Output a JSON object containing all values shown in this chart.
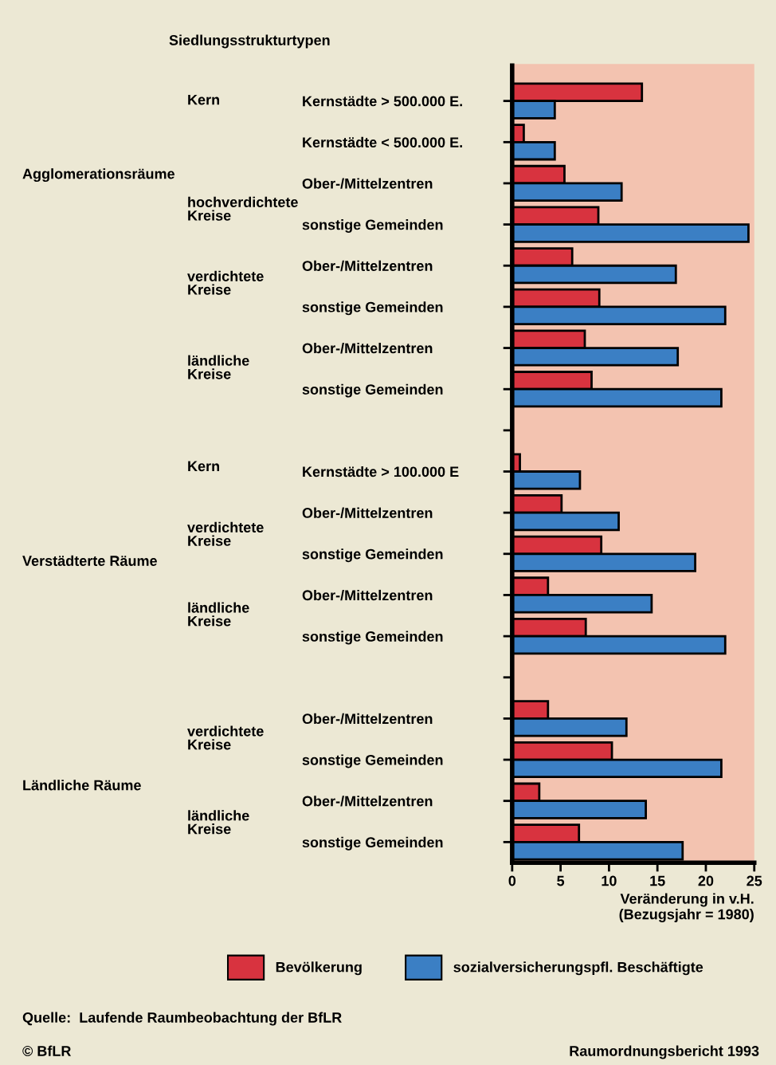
{
  "chart_data": {
    "type": "bar",
    "orientation": "horizontal",
    "title": "Siedlungsstrukturtypen",
    "xlabel": "Veränderung in v.H.\n(Bezugsjahr = 1980)",
    "categories": [
      "Kernstädte > 500.000 E.",
      "Kernstädte < 500.000 E.",
      "Ober-/Mittelzentren",
      "sonstige Gemeinden",
      "Ober-/Mittelzentren",
      "sonstige Gemeinden",
      "Ober-/Mittelzentren",
      "sonstige Gemeinden",
      null,
      "Kernstädte > 100.000 E",
      "Ober-/Mittelzentren",
      "sonstige Gemeinden",
      "Ober-/Mittelzentren",
      "sonstige Gemeinden",
      null,
      "Ober-/Mittelzentren",
      "sonstige Gemeinden",
      "Ober-/Mittelzentren",
      "sonstige Gemeinden"
    ],
    "series": [
      {
        "name": "Bevölkerung",
        "color": "#d8333f",
        "values": [
          13.4,
          1.2,
          5.4,
          8.9,
          6.2,
          9.0,
          7.5,
          8.2,
          null,
          0.8,
          5.1,
          9.2,
          3.7,
          7.6,
          null,
          3.7,
          10.3,
          2.8,
          6.9
        ]
      },
      {
        "name": "sozialversicherungspfl. Beschäftigte",
        "color": "#3b7fc4",
        "values": [
          4.4,
          4.4,
          11.3,
          24.4,
          16.9,
          22.0,
          17.1,
          21.6,
          null,
          7.0,
          11.0,
          18.9,
          14.4,
          22.0,
          null,
          11.8,
          21.6,
          13.8,
          17.6
        ]
      }
    ],
    "xlim": [
      0,
      25
    ],
    "xticks": [
      0,
      5,
      10,
      15,
      20,
      25
    ],
    "legend": "bottom",
    "grid": false,
    "annotations": [
      "Kern",
      "Agglomerationsräume",
      "hochverdichtete\nKreise",
      "verdichtete\nKreise",
      "ländliche\nKreise",
      "Kern",
      "verdichtete\nKreise",
      "Verstädterte Räume",
      "ländliche\nKreise",
      "verdichtete\nKreise",
      "Ländliche Räume",
      "ländliche\nKreise",
      "Quelle:  Laufende Raumbeobachtung der BfLR",
      "© BfLR",
      "Raumordnungsbericht 1993"
    ]
  }
}
